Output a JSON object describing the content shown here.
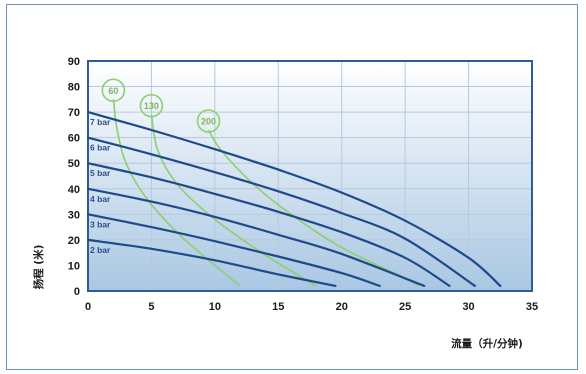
{
  "chart_data": {
    "type": "line",
    "xlabel": "流量（升/分钟)",
    "ylabel": "扬程 (米)",
    "xlim": [
      0,
      35
    ],
    "ylim": [
      0,
      90
    ],
    "x_ticks": [
      0,
      5,
      10,
      15,
      20,
      25,
      30,
      35
    ],
    "y_ticks": [
      0,
      10,
      20,
      30,
      40,
      50,
      60,
      70,
      80,
      90
    ],
    "grid": true,
    "colors": {
      "pressure": "#1f4a8a",
      "air": "#8ccf6e",
      "bg_top": "#ffffff",
      "bg_bottom": "#a9c7e3"
    },
    "pressure_series": [
      {
        "name": "2 bar",
        "x": [
          0,
          5,
          10,
          15,
          19.5
        ],
        "y": [
          20,
          16.5,
          12,
          6.5,
          2
        ]
      },
      {
        "name": "3 bar",
        "x": [
          0,
          5,
          10,
          15,
          20,
          23
        ],
        "y": [
          30,
          25,
          19.5,
          13.5,
          7,
          2
        ]
      },
      {
        "name": "4 bar",
        "x": [
          0,
          5,
          10,
          15,
          20,
          26.5
        ],
        "y": [
          40,
          35,
          29,
          22,
          14.5,
          2
        ]
      },
      {
        "name": "5 bar",
        "x": [
          0,
          5,
          10,
          15,
          20,
          25,
          28.5
        ],
        "y": [
          50,
          44.5,
          38,
          31,
          23,
          13,
          2
        ]
      },
      {
        "name": "6 bar",
        "x": [
          0,
          5,
          10,
          15,
          20,
          25,
          30.5
        ],
        "y": [
          60,
          53.5,
          46.5,
          39,
          30.5,
          20.5,
          2
        ]
      },
      {
        "name": "7 bar",
        "x": [
          0,
          5,
          10,
          15,
          20,
          25,
          30,
          32.5
        ],
        "y": [
          70,
          63,
          55.5,
          47.5,
          38.5,
          27.5,
          13,
          2
        ]
      }
    ],
    "air_series": [
      {
        "name": "60",
        "x": [
          2,
          2.3,
          3,
          4.5,
          7,
          10,
          12
        ],
        "y": [
          75,
          63,
          50,
          37,
          23,
          10,
          2
        ]
      },
      {
        "name": "130",
        "x": [
          5,
          5.5,
          7,
          10,
          14,
          18
        ],
        "y": [
          69,
          55,
          42,
          28,
          14,
          2
        ]
      },
      {
        "name": "200",
        "x": [
          9.5,
          10.5,
          13,
          16,
          20,
          25,
          26
        ],
        "y": [
          63,
          55,
          42,
          30,
          17,
          5,
          2
        ]
      }
    ]
  }
}
